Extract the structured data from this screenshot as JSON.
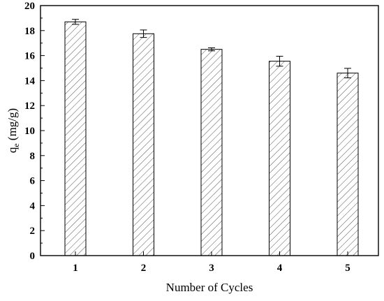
{
  "chart_data": {
    "type": "bar",
    "title": "",
    "xlabel": "Number of Cycles",
    "ylabel_main": "q",
    "ylabel_sub": "e",
    "ylabel_unit": " (mg/g)",
    "categories": [
      "1",
      "2",
      "3",
      "4",
      "5"
    ],
    "values": [
      18.7,
      17.75,
      16.5,
      15.55,
      14.6
    ],
    "errors": [
      0.2,
      0.3,
      0.12,
      0.4,
      0.38
    ],
    "ylim": [
      0,
      20
    ],
    "yticks": [
      "0",
      "2",
      "4",
      "6",
      "8",
      "10",
      "12",
      "14",
      "16",
      "18",
      "20"
    ],
    "grid": false,
    "bar_fill": "hatched",
    "colors": {
      "stroke": "#000000",
      "hatch": "#555555",
      "background": "#ffffff"
    }
  }
}
